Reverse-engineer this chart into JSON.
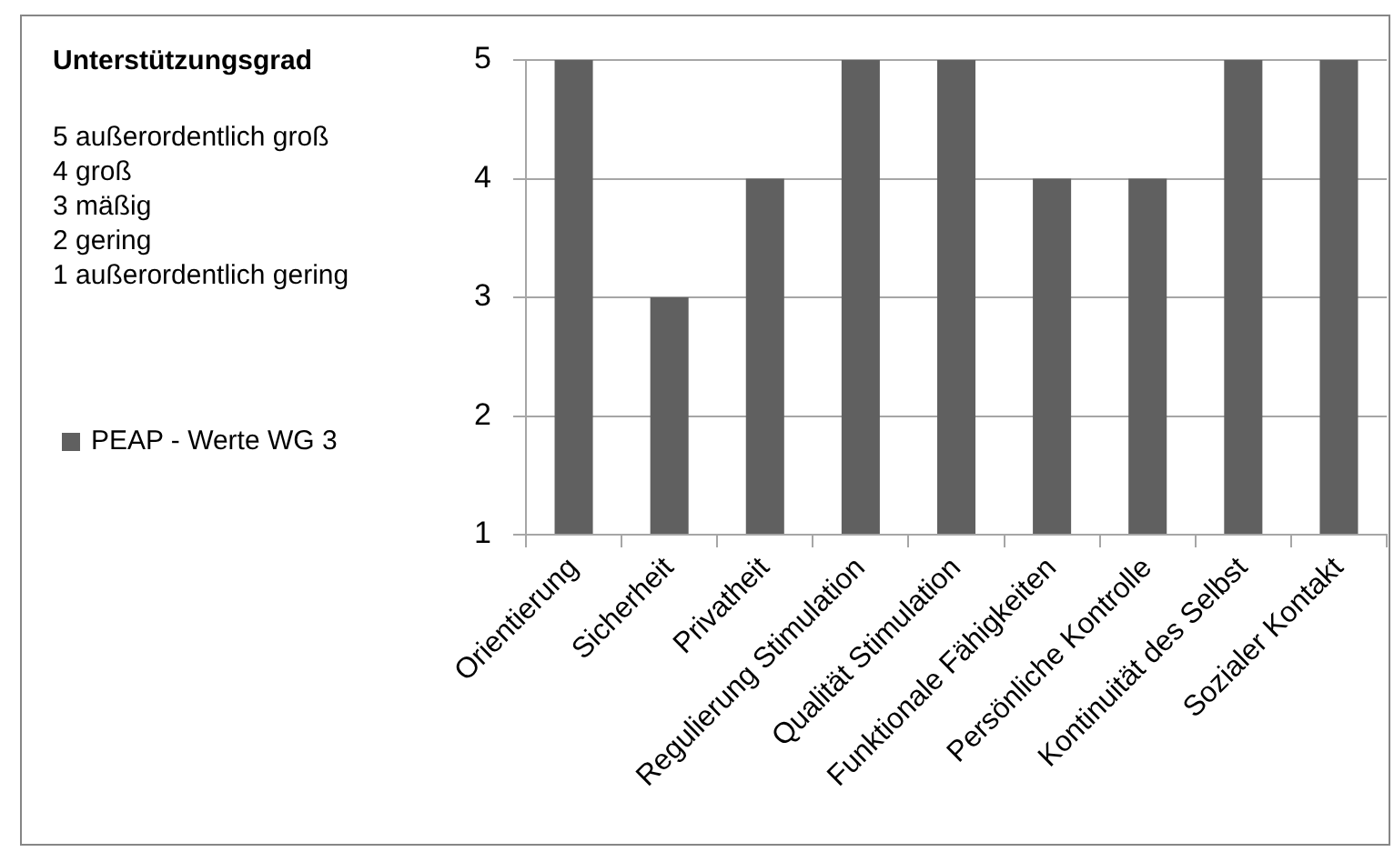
{
  "chart_data": {
    "type": "bar",
    "title": "Unterstützungsgrad",
    "annotations": [
      "5 außerordentlich groß",
      "4 groß",
      "3 mäßig",
      "2 gering",
      "1 außerordentlich gering"
    ],
    "categories": [
      "Orientierung",
      "Sicherheit",
      "Privatheit",
      "Regulierung Stimulation",
      "Qualität Stimulation",
      "Funktionale Fähigkeiten",
      "Persönliche Kontrolle",
      "Kontinuität des Selbst",
      "Sozialer Kontakt"
    ],
    "series": [
      {
        "name": "PEAP - Werte WG 3",
        "color": "#606060",
        "values": [
          5,
          3,
          4,
          5,
          5,
          4,
          4,
          5,
          5
        ]
      }
    ],
    "ylim": [
      1,
      5
    ],
    "yticks": [
      1,
      2,
      3,
      4,
      5
    ],
    "grid": "y",
    "legend": "left"
  }
}
